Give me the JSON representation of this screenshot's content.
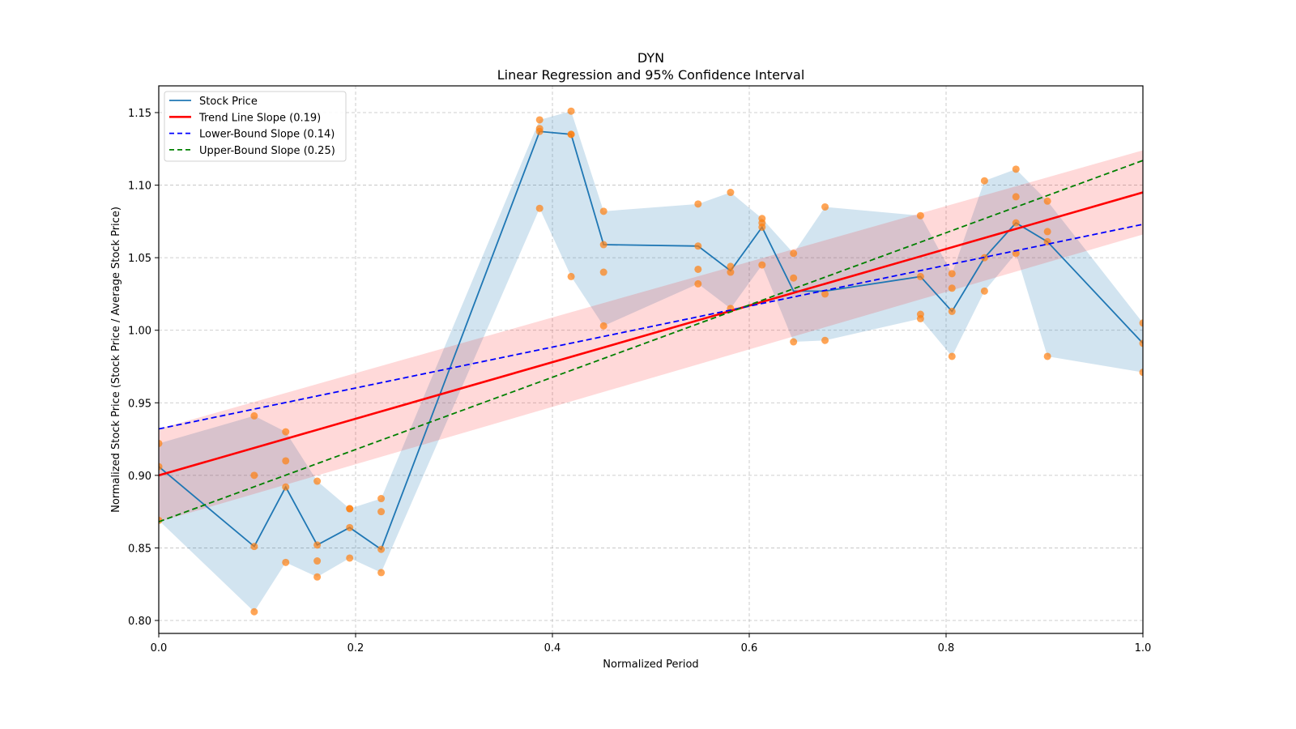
{
  "chart_data": {
    "type": "line",
    "title": "DYN",
    "subtitle": "Linear Regression and 95% Confidence Interval",
    "xlabel": "Normalized Period",
    "ylabel": "Normalized Stock Price (Stock Price / Average Stock Price)",
    "xlim": [
      0.0,
      1.0
    ],
    "ylim": [
      0.79,
      1.168
    ],
    "grid": true,
    "legend_position": "top-left",
    "xticks": [
      "0.0",
      "0.2",
      "0.4",
      "0.6",
      "0.8",
      "1.0"
    ],
    "xtick_values": [
      0.0,
      0.2,
      0.4,
      0.6,
      0.8,
      1.0
    ],
    "yticks": [
      "0.80",
      "0.85",
      "0.90",
      "0.95",
      "1.00",
      "1.05",
      "1.10",
      "1.15"
    ],
    "ytick_values": [
      0.8,
      0.85,
      0.9,
      0.95,
      1.0,
      1.05,
      1.1,
      1.15
    ],
    "colors": {
      "stock": "#1f77b4",
      "stock_band": "#1f77b4",
      "points": "#ff7f0e",
      "trend": "#ff0000",
      "ci_band": "#ff0000",
      "lower": "#0000ff",
      "upper": "#008000",
      "grid": "#b0b0b0"
    },
    "legend": [
      {
        "label": "Stock Price",
        "style": "solid",
        "color": "#1f77b4"
      },
      {
        "label": "Trend Line Slope (0.19)",
        "style": "solid",
        "color": "#ff0000"
      },
      {
        "label": "Lower-Bound Slope (0.14)",
        "style": "dashed",
        "color": "#0000ff"
      },
      {
        "label": "Upper-Bound Slope (0.25)",
        "style": "dashed",
        "color": "#008000"
      }
    ],
    "stock_price": {
      "x": [
        0.0,
        0.097,
        0.129,
        0.161,
        0.194,
        0.226,
        0.387,
        0.419,
        0.452,
        0.548,
        0.581,
        0.613,
        0.645,
        0.677,
        0.774,
        0.806,
        0.839,
        0.871,
        0.903,
        1.0
      ],
      "y": [
        0.906,
        0.851,
        0.892,
        0.852,
        0.864,
        0.849,
        1.137,
        1.135,
        1.059,
        1.058,
        1.041,
        1.071,
        1.027,
        1.027,
        1.037,
        1.013,
        1.05,
        1.074,
        1.061,
        0.991
      ],
      "band_low": [
        0.869,
        0.806,
        0.84,
        0.83,
        0.843,
        0.833,
        1.084,
        1.037,
        1.003,
        1.032,
        1.015,
        1.045,
        0.992,
        0.993,
        1.008,
        0.982,
        1.027,
        1.053,
        0.982,
        0.971
      ],
      "band_high": [
        0.922,
        0.941,
        0.93,
        0.896,
        0.877,
        0.884,
        1.145,
        1.151,
        1.082,
        1.087,
        1.095,
        1.077,
        1.053,
        1.085,
        1.079,
        1.039,
        1.103,
        1.111,
        1.089,
        1.005
      ]
    },
    "points": [
      {
        "x": 0.0,
        "y": [
          0.922,
          0.906,
          0.869
        ]
      },
      {
        "x": 0.097,
        "y": [
          0.941,
          0.9,
          0.851,
          0.806
        ]
      },
      {
        "x": 0.129,
        "y": [
          0.93,
          0.91,
          0.892,
          0.84
        ]
      },
      {
        "x": 0.161,
        "y": [
          0.896,
          0.852,
          0.841,
          0.83
        ]
      },
      {
        "x": 0.194,
        "y": [
          0.877,
          0.877,
          0.864,
          0.843
        ]
      },
      {
        "x": 0.226,
        "y": [
          0.884,
          0.875,
          0.849,
          0.833
        ]
      },
      {
        "x": 0.387,
        "y": [
          1.145,
          1.139,
          1.137,
          1.084
        ]
      },
      {
        "x": 0.419,
        "y": [
          1.151,
          1.135,
          1.135,
          1.037
        ]
      },
      {
        "x": 0.452,
        "y": [
          1.082,
          1.059,
          1.04,
          1.003
        ]
      },
      {
        "x": 0.548,
        "y": [
          1.087,
          1.058,
          1.042,
          1.032
        ]
      },
      {
        "x": 0.581,
        "y": [
          1.095,
          1.044,
          1.04,
          1.015
        ]
      },
      {
        "x": 0.613,
        "y": [
          1.077,
          1.074,
          1.071,
          1.045
        ]
      },
      {
        "x": 0.645,
        "y": [
          1.053,
          1.036,
          0.992
        ]
      },
      {
        "x": 0.677,
        "y": [
          1.085,
          1.025,
          0.993
        ]
      },
      {
        "x": 0.774,
        "y": [
          1.079,
          1.037,
          1.011,
          1.008
        ]
      },
      {
        "x": 0.806,
        "y": [
          1.039,
          1.029,
          1.013,
          0.982
        ]
      },
      {
        "x": 0.839,
        "y": [
          1.103,
          1.05,
          1.027
        ]
      },
      {
        "x": 0.871,
        "y": [
          1.111,
          1.092,
          1.074,
          1.053
        ]
      },
      {
        "x": 0.903,
        "y": [
          1.089,
          1.068,
          1.061,
          0.982
        ]
      },
      {
        "x": 1.0,
        "y": [
          1.005,
          0.991,
          0.971
        ]
      }
    ],
    "trend_line": {
      "x": [
        0.0,
        1.0
      ],
      "y": [
        0.9,
        1.095
      ],
      "slope": 0.19
    },
    "trend_ci": {
      "x": [
        0.0,
        1.0
      ],
      "low": [
        0.868,
        1.066
      ],
      "high": [
        0.932,
        1.124
      ]
    },
    "lower_bound_line": {
      "x": [
        0.0,
        1.0
      ],
      "y": [
        0.932,
        1.073
      ],
      "slope": 0.14
    },
    "upper_bound_line": {
      "x": [
        0.0,
        1.0
      ],
      "y": [
        0.868,
        1.117
      ],
      "slope": 0.25
    }
  }
}
